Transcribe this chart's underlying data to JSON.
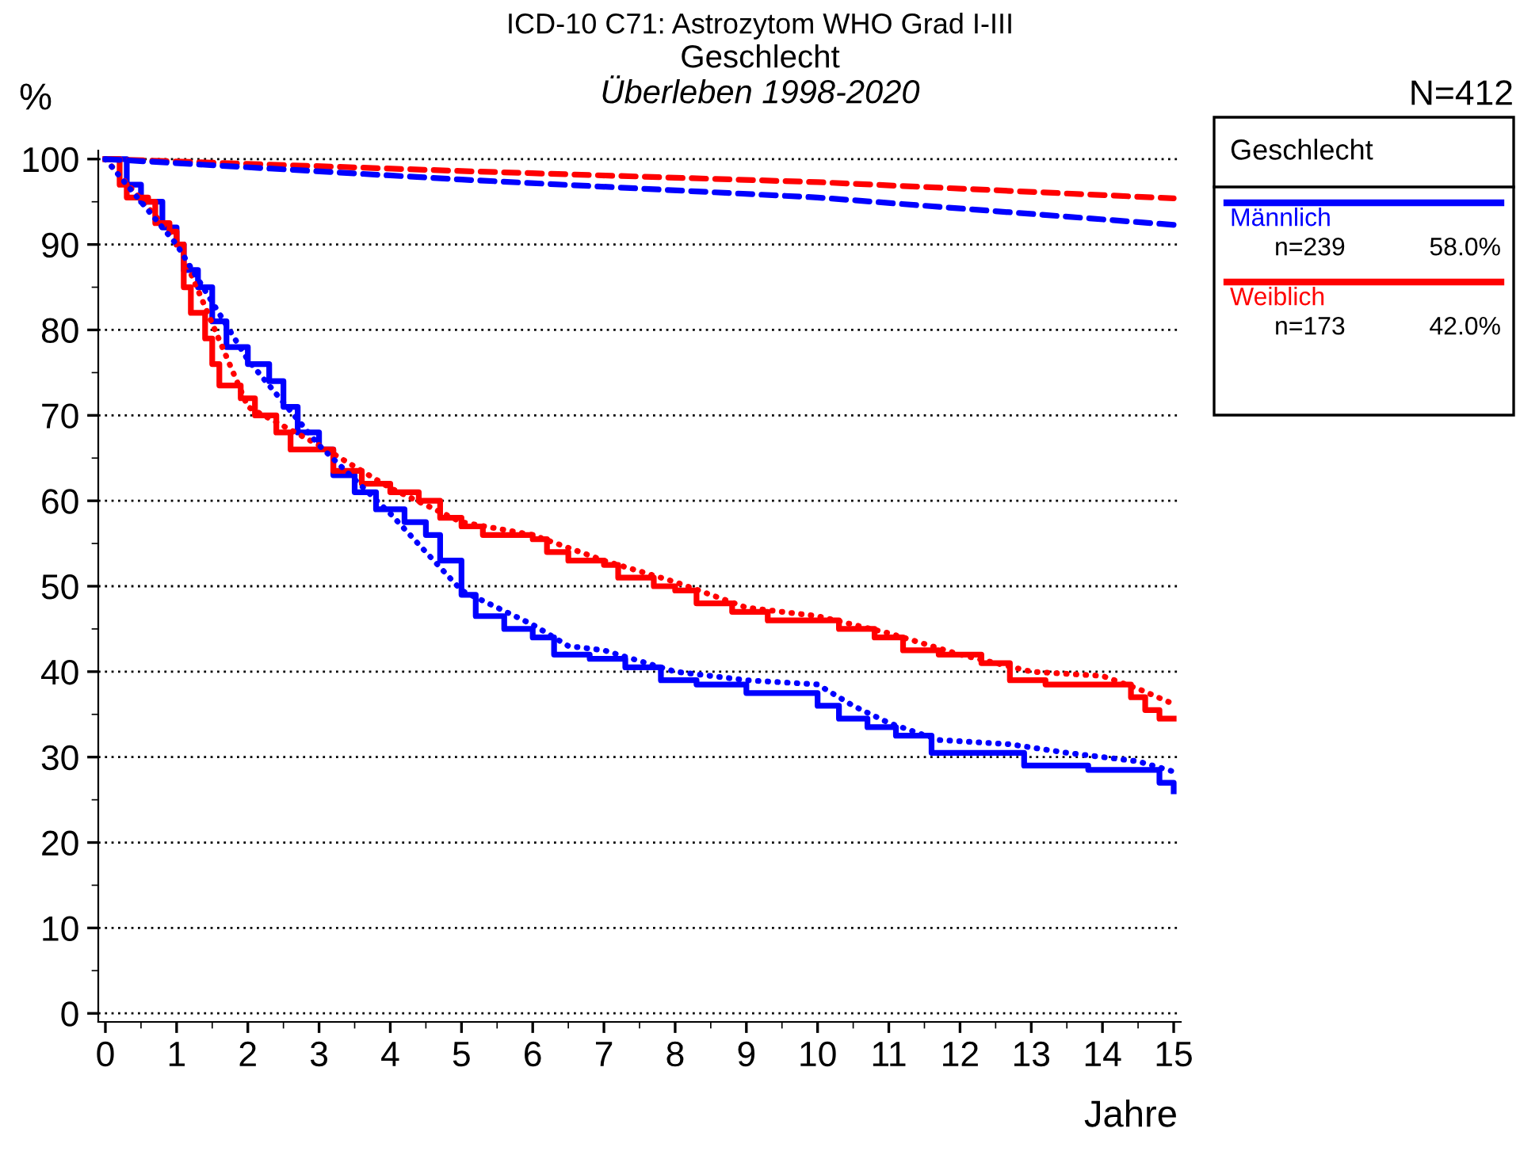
{
  "chart_data": {
    "type": "step",
    "title": "ICD-10 C71: Astrozytom WHO Grad I-III",
    "subtitle": "Geschlecht",
    "xlabel": "Jahre",
    "ylabel": "%",
    "legend_title": "Geschlecht",
    "annotations": [
      "Überleben 1998-2020",
      "N=412",
      "n=239",
      "58.0%",
      "n=173",
      "42.0%"
    ],
    "xlim": [
      -0.1,
      15.1
    ],
    "ylim": [
      -1,
      101
    ],
    "xticks": [
      0,
      1,
      2,
      3,
      4,
      5,
      6,
      7,
      8,
      9,
      10,
      11,
      12,
      13,
      14,
      15
    ],
    "yticks": [
      0,
      10,
      20,
      30,
      40,
      50,
      60,
      70,
      80,
      90,
      100
    ],
    "grid": "y",
    "legend": "top right",
    "series": [
      {
        "name": "Männlich",
        "color": "#0000ff",
        "line_style": "solid",
        "x": [
          0,
          0.3,
          0.5,
          0.8,
          1.0,
          1.1,
          1.3,
          1.5,
          1.7,
          2.0,
          2.3,
          2.5,
          2.7,
          3.0,
          3.2,
          3.5,
          3.8,
          4.2,
          4.5,
          4.7,
          5.0,
          5.2,
          5.6,
          6.0,
          6.3,
          6.8,
          7.3,
          7.8,
          8.3,
          9.0,
          10.0,
          10.3,
          10.7,
          11.1,
          11.6,
          12.9,
          13.8,
          14.8,
          15
        ],
        "values": [
          100,
          97,
          95,
          92,
          90,
          87,
          85,
          81,
          78,
          76,
          74,
          71,
          68,
          66,
          63,
          61,
          59,
          57.5,
          56,
          53,
          49,
          46.5,
          45,
          44,
          42,
          41.5,
          40.5,
          39,
          38.5,
          37.5,
          36,
          34.5,
          33.5,
          32.5,
          30.5,
          29,
          28.5,
          27,
          26
        ]
      },
      {
        "color": "#0000ff",
        "type": "line",
        "line_style": "dotted",
        "x": [
          0,
          1,
          2,
          3,
          4,
          5,
          5.5,
          6,
          6.5,
          7,
          8,
          9,
          10,
          10.5,
          11,
          11.7,
          12.7,
          13.5,
          14.5,
          15
        ],
        "values": [
          100,
          90,
          76.5,
          66.5,
          58.5,
          49.5,
          47.5,
          45.5,
          43,
          42.5,
          40,
          39,
          38.5,
          36,
          34,
          32,
          31.5,
          30.5,
          29.5,
          28.3
        ]
      },
      {
        "color": "#0000ff",
        "type": "line",
        "line_style": "dashed",
        "x": [
          0,
          5,
          10,
          15
        ],
        "values": [
          100,
          97.6,
          95.5,
          92.3
        ]
      },
      {
        "name": "Weiblich",
        "color": "#ff0000",
        "line_style": "solid",
        "x": [
          0,
          0.2,
          0.3,
          0.6,
          0.7,
          0.9,
          1.0,
          1.1,
          1.2,
          1.4,
          1.5,
          1.6,
          1.9,
          2.1,
          2.4,
          2.6,
          3.2,
          3.6,
          4.0,
          4.4,
          4.7,
          5.0,
          5.3,
          6.0,
          6.2,
          6.5,
          7.0,
          7.2,
          7.7,
          8.0,
          8.3,
          8.8,
          9.3,
          10.3,
          10.8,
          11.2,
          11.7,
          12.3,
          12.7,
          13.2,
          14.4,
          14.6,
          14.8,
          15
        ],
        "values": [
          100,
          97,
          95.5,
          95,
          92.5,
          91.5,
          90,
          85,
          82,
          79,
          76,
          73.5,
          72,
          70,
          68,
          66,
          63.5,
          62,
          61,
          60,
          58,
          57,
          56,
          55.5,
          54,
          53,
          52.5,
          51,
          50,
          49.5,
          48,
          47,
          46,
          45,
          44,
          42.5,
          42,
          41,
          39,
          38.5,
          37,
          35.5,
          34.5,
          34.5
        ]
      },
      {
        "color": "#ff0000",
        "type": "line",
        "line_style": "dotted",
        "x": [
          0,
          1,
          2,
          3,
          4,
          5,
          6,
          7,
          8,
          9,
          10,
          11,
          12,
          13,
          14,
          14.5,
          15
        ],
        "values": [
          100,
          90.5,
          71,
          66.5,
          61.5,
          57.5,
          56,
          53,
          50.5,
          47.5,
          46.5,
          44.5,
          42,
          40,
          39.5,
          38,
          36.2
        ]
      },
      {
        "color": "#ff0000",
        "type": "line",
        "line_style": "dashed",
        "x": [
          0,
          5,
          10,
          15
        ],
        "values": [
          100,
          98.6,
          97.3,
          95.4
        ]
      }
    ]
  }
}
